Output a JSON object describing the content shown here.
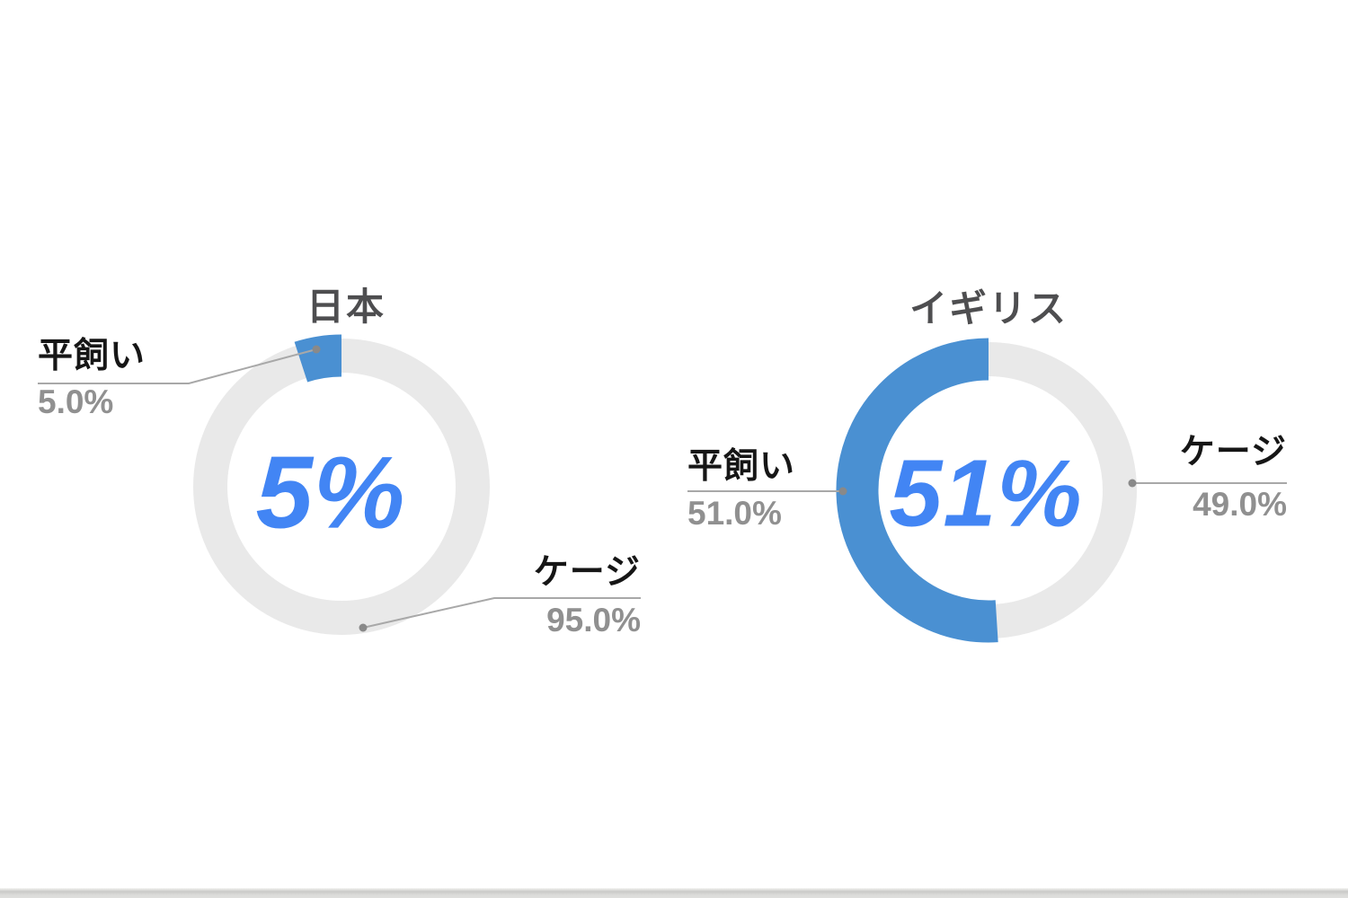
{
  "page": {
    "background": "#ffffff",
    "palette": {
      "slice_blue": "#4a90d2",
      "ring_gray": "#e9e9e9",
      "center_value_blue": "#4285f4",
      "title_gray": "#4e4e50",
      "label_black": "#161616",
      "percent_gray": "#909090",
      "leader_line_gray": "#a8a8a8"
    }
  },
  "chart_data": [
    {
      "type": "pie",
      "donut": true,
      "title": "日本",
      "center_label": "5%",
      "start_angle_deg": 90,
      "direction": "counterclockwise",
      "slices": [
        {
          "label": "平飼い",
          "value": 5.0,
          "display": "5.0%",
          "color": "#4a90d2",
          "emphasized": true
        },
        {
          "label": "ケージ",
          "value": 95.0,
          "display": "95.0%",
          "color": "#e9e9e9",
          "emphasized": false
        }
      ]
    },
    {
      "type": "pie",
      "donut": true,
      "title": "イギリス",
      "center_label": "51%",
      "start_angle_deg": 90,
      "direction": "counterclockwise",
      "slices": [
        {
          "label": "平飼い",
          "value": 51.0,
          "display": "51.0%",
          "color": "#4a90d2",
          "emphasized": true
        },
        {
          "label": "ケージ",
          "value": 49.0,
          "display": "49.0%",
          "color": "#e9e9e9",
          "emphasized": false
        }
      ]
    }
  ]
}
